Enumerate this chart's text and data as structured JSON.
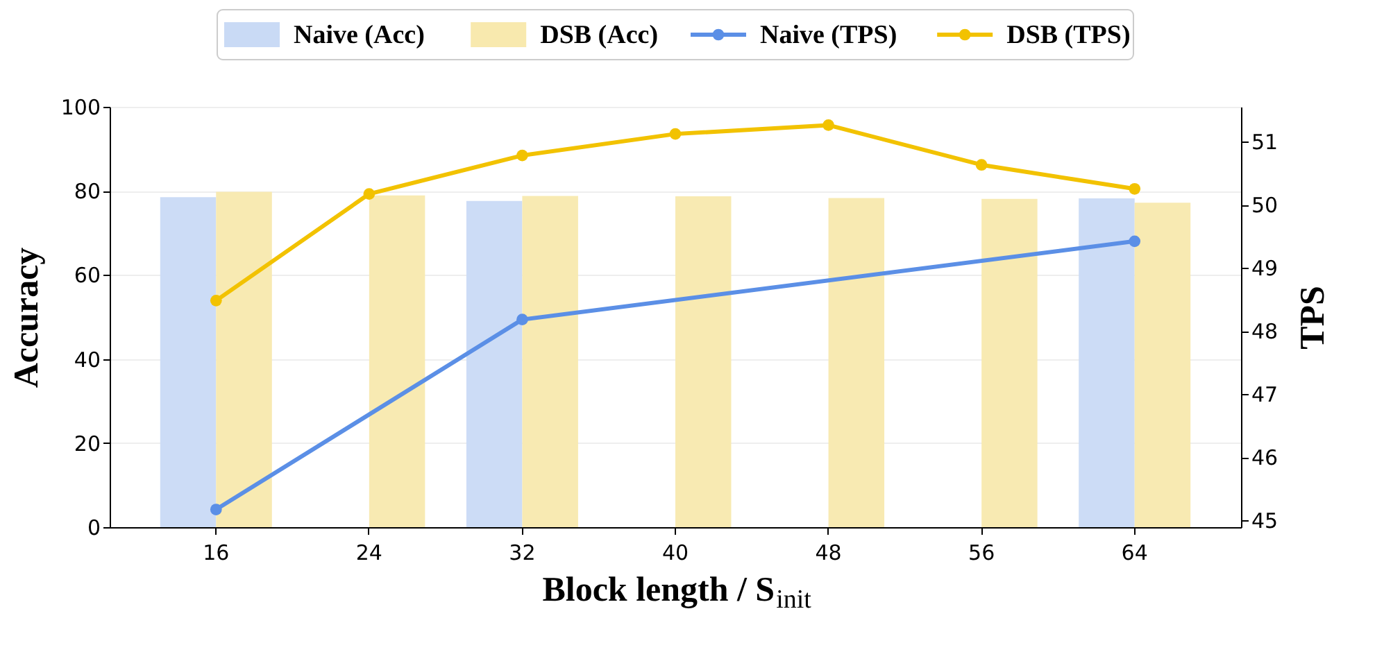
{
  "chart_data": {
    "type": "bar",
    "xlabel": "Block length / S$_{init}$",
    "ylabel": "Accuracy",
    "y2label": "TPS",
    "categories": [
      "16",
      "24",
      "32",
      "40",
      "48",
      "56",
      "64"
    ],
    "ylim": [
      0,
      100
    ],
    "yticks": [
      0,
      20,
      40,
      60,
      80,
      100
    ],
    "y2lim": [
      44.89,
      51.55
    ],
    "y2ticks": [
      45,
      46,
      47,
      48,
      49,
      50,
      51
    ],
    "grid": "y",
    "legend": "top",
    "marker": "circle",
    "series": [
      {
        "name": "Naive (Acc)",
        "type": "bar",
        "color": "#c9daf5",
        "values": [
          78.5,
          null,
          77.6,
          null,
          null,
          null,
          78.2
        ]
      },
      {
        "name": "DSB (Acc)",
        "type": "bar",
        "color": "#f8e9ae",
        "values": [
          79.8,
          78.9,
          78.8,
          78.7,
          78.3,
          78.1,
          77.2
        ]
      },
      {
        "name": "Naive (TPS)",
        "type": "line",
        "axis": "y2",
        "color": "#5b8fe6",
        "values": [
          45.17,
          null,
          48.18,
          null,
          null,
          null,
          49.42
        ]
      },
      {
        "name": "DSB (TPS)",
        "type": "line",
        "axis": "y2",
        "color": "#f2c200",
        "values": [
          48.48,
          50.17,
          50.78,
          51.12,
          51.26,
          50.63,
          50.25
        ]
      }
    ]
  }
}
